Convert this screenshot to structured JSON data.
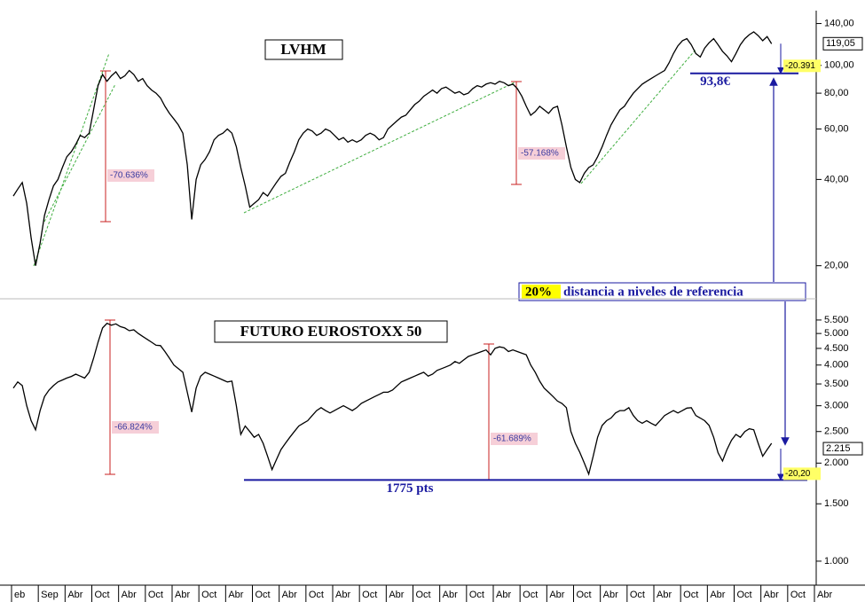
{
  "chart_data": [
    {
      "type": "line",
      "title": "LVHM",
      "log_scale": true,
      "color": "#000000",
      "values": [
        35,
        37,
        39,
        33,
        25,
        20,
        24,
        30,
        34,
        38,
        40,
        44,
        48,
        50,
        53,
        57,
        56,
        58,
        70,
        85,
        93,
        88,
        92,
        95,
        90,
        92,
        96,
        93,
        88,
        90,
        85,
        82,
        80,
        77,
        72,
        68,
        65,
        62,
        58,
        45,
        29,
        40,
        45,
        47,
        50,
        55,
        57,
        58,
        60,
        58,
        52,
        44,
        38,
        32,
        33,
        34,
        36,
        35,
        37,
        39,
        41,
        42,
        46,
        50,
        55,
        58,
        60,
        59,
        57,
        58,
        60,
        59,
        57,
        55,
        56,
        54,
        55,
        54,
        55,
        57,
        58,
        57,
        55,
        56,
        60,
        62,
        64,
        66,
        67,
        70,
        73,
        75,
        78,
        80,
        82,
        80,
        83,
        84,
        82,
        80,
        81,
        79,
        80,
        83,
        85,
        84,
        86,
        87,
        86,
        88,
        87,
        85,
        86,
        83,
        78,
        72,
        67,
        69,
        72,
        70,
        68,
        71,
        72,
        62,
        52,
        44,
        40,
        39,
        42,
        44,
        45,
        48,
        52,
        57,
        62,
        66,
        70,
        72,
        76,
        80,
        83,
        86,
        88,
        90,
        92,
        94,
        96,
        102,
        110,
        117,
        122,
        124,
        118,
        110,
        107,
        115,
        120,
        124,
        118,
        112,
        108,
        103,
        110,
        118,
        124,
        128,
        131,
        127,
        122,
        126,
        119,
        null,
        null,
        null,
        null,
        null,
        null,
        null,
        null,
        null,
        null
      ],
      "ylim": [
        16.7,
        152
      ],
      "yticks": [
        {
          "value": 140,
          "label": "140,00"
        },
        {
          "value": 100,
          "label": "100,00"
        },
        {
          "value": 80,
          "label": "80,00"
        },
        {
          "value": 60,
          "label": "60,00"
        },
        {
          "value": 40,
          "label": "40,00"
        },
        {
          "value": 20,
          "label": "20,00"
        }
      ],
      "drawdown_labels": [
        "-70.636%",
        "-57.168%"
      ],
      "reference_level": {
        "value": 93.8,
        "label": "93,8€"
      },
      "last_price": {
        "value": 119.05,
        "label": "119,05"
      },
      "distance_label": "-20.391",
      "note_highlight": "20%",
      "note": "distancia a niveles de referencia"
    },
    {
      "type": "line",
      "title": "FUTURO EUROSTOXX 50",
      "log_scale": true,
      "color": "#000000",
      "categories": [
        "eb",
        null,
        null,
        null,
        null,
        null,
        "Sep",
        null,
        null,
        null,
        null,
        null,
        "Abr",
        null,
        null,
        null,
        null,
        null,
        "Oct",
        null,
        null,
        null,
        null,
        null,
        "Abr",
        null,
        null,
        null,
        null,
        null,
        "Oct",
        null,
        null,
        null,
        null,
        null,
        "Abr",
        null,
        null,
        null,
        null,
        null,
        "Oct",
        null,
        null,
        null,
        null,
        null,
        "Abr",
        null,
        null,
        null,
        null,
        null,
        "Oct",
        null,
        null,
        null,
        null,
        null,
        "Abr",
        null,
        null,
        null,
        null,
        null,
        "Oct",
        null,
        null,
        null,
        null,
        null,
        "Abr",
        null,
        null,
        null,
        null,
        null,
        "Oct",
        null,
        null,
        null,
        null,
        null,
        "Abr",
        null,
        null,
        null,
        null,
        null,
        "Oct",
        null,
        null,
        null,
        null,
        null,
        "Abr",
        null,
        null,
        null,
        null,
        null,
        "Oct",
        null,
        null,
        null,
        null,
        null,
        "Abr",
        null,
        null,
        null,
        null,
        null,
        "Oct",
        null,
        null,
        null,
        null,
        null,
        "Abr",
        null,
        null,
        null,
        null,
        null,
        "Oct",
        null,
        null,
        null,
        null,
        null,
        "Abr",
        null,
        null,
        null,
        null,
        null,
        "Oct",
        null,
        null,
        null,
        null,
        null,
        "Abr",
        null,
        null,
        null,
        null,
        null,
        "Oct",
        null,
        null,
        null,
        null,
        null,
        "Abr",
        null,
        null,
        null,
        null,
        null,
        "Oct",
        null,
        null,
        null,
        null,
        null,
        "Abr",
        null,
        null,
        null,
        null,
        null,
        "Oct",
        null,
        null,
        null,
        null,
        null,
        "Abr"
      ],
      "values": [
        3400,
        3550,
        3460,
        3000,
        2700,
        2530,
        2900,
        3200,
        3350,
        3460,
        3550,
        3600,
        3650,
        3690,
        3750,
        3700,
        3650,
        3800,
        4200,
        4700,
        5200,
        5370,
        5300,
        5350,
        5250,
        5200,
        5100,
        5130,
        5000,
        4900,
        4800,
        4700,
        4600,
        4590,
        4400,
        4200,
        4000,
        3900,
        3800,
        3300,
        2870,
        3400,
        3700,
        3800,
        3750,
        3700,
        3650,
        3600,
        3550,
        3570,
        3000,
        2450,
        2600,
        2500,
        2400,
        2450,
        2300,
        2100,
        1910,
        2050,
        2200,
        2300,
        2400,
        2500,
        2600,
        2650,
        2700,
        2800,
        2900,
        2960,
        2900,
        2850,
        2900,
        2950,
        3000,
        2950,
        2900,
        2960,
        3050,
        3100,
        3150,
        3200,
        3250,
        3300,
        3300,
        3350,
        3450,
        3550,
        3600,
        3650,
        3700,
        3750,
        3800,
        3700,
        3750,
        3850,
        3900,
        3950,
        4000,
        4100,
        4050,
        4150,
        4250,
        4300,
        4350,
        4400,
        4450,
        4300,
        4500,
        4550,
        4520,
        4400,
        4450,
        4400,
        4350,
        4300,
        4000,
        3800,
        3570,
        3400,
        3300,
        3200,
        3100,
        3050,
        2960,
        2500,
        2300,
        2160,
        2000,
        1850,
        2100,
        2400,
        2610,
        2700,
        2750,
        2850,
        2900,
        2900,
        2960,
        2800,
        2700,
        2650,
        2700,
        2650,
        2610,
        2700,
        2800,
        2850,
        2900,
        2850,
        2900,
        2950,
        2960,
        2800,
        2750,
        2700,
        2610,
        2400,
        2150,
        2030,
        2200,
        2350,
        2450,
        2400,
        2500,
        2550,
        2530,
        2300,
        2100,
        2200,
        2300,
        null,
        null,
        null,
        null,
        null,
        null,
        null,
        null,
        null,
        null
      ],
      "ylim": [
        844,
        5890
      ],
      "yticks": [
        {
          "value": 5500,
          "label": "5.500"
        },
        {
          "value": 5000,
          "label": "5.000"
        },
        {
          "value": 4500,
          "label": "4.500"
        },
        {
          "value": 4000,
          "label": "4.000"
        },
        {
          "value": 3500,
          "label": "3.500"
        },
        {
          "value": 3000,
          "label": "3.000"
        },
        {
          "value": 2500,
          "label": "2.500"
        },
        {
          "value": 2000,
          "label": "2.000"
        },
        {
          "value": 1500,
          "label": "1.500"
        },
        {
          "value": 1000,
          "label": "1.000"
        }
      ],
      "drawdown_labels": [
        "-66.824%",
        "-61.689%"
      ],
      "reference_level": {
        "value": 1775,
        "label": "1775 pts"
      },
      "last_price": {
        "value": 2215,
        "label": "2.215"
      },
      "distance_label": "-20,20"
    }
  ]
}
